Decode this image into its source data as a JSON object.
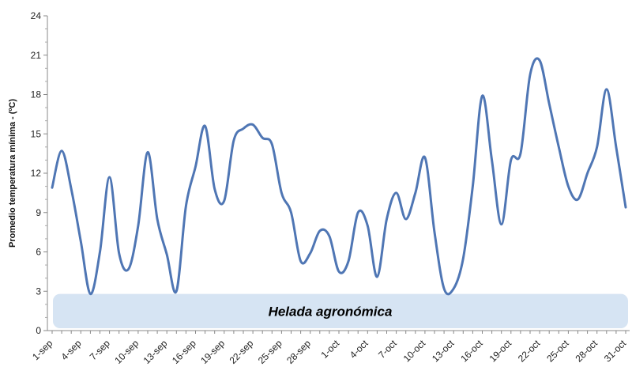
{
  "chart_data": {
    "type": "line",
    "ylabel": "Promedio temperatura mínima - (ºC)",
    "xlabel": "",
    "title": "",
    "ylim": [
      0,
      24
    ],
    "yticks": [
      0,
      3,
      6,
      9,
      12,
      15,
      18,
      21,
      24
    ],
    "x_tick_labels": [
      "1-sep",
      "4-sep",
      "7-sep",
      "10-sep",
      "13-sep",
      "16-sep",
      "19-sep",
      "22-sep",
      "25-sep",
      "28-sep",
      "1-oct",
      "4-oct",
      "7-oct",
      "10-oct",
      "13-oct",
      "16-oct",
      "19-oct",
      "22-oct",
      "25-oct",
      "28-oct",
      "31-oct"
    ],
    "grid": false,
    "legend": "none",
    "series_color": "#4f76b4",
    "band": {
      "label": "Helada agronómica",
      "y_from": 0,
      "y_to": 2.8,
      "color": "#d6e4f3"
    },
    "series": [
      {
        "values": [
          10.9,
          13.7,
          10.8,
          6.8,
          2.8,
          6.0,
          11.7,
          5.9,
          4.7,
          8.0,
          13.6,
          8.5,
          5.8,
          3.0,
          9.5,
          12.5,
          15.6,
          10.8,
          9.9,
          14.5,
          15.4,
          15.7,
          14.7,
          14.2,
          10.5,
          9.0,
          5.3,
          5.9,
          7.6,
          7.2,
          4.5,
          5.3,
          9.0,
          8.0,
          4.1,
          8.5,
          10.5,
          8.5,
          10.5,
          13.2,
          7.5,
          3.2,
          3.2,
          5.5,
          11.0,
          17.9,
          13.0,
          8.1,
          13.0,
          13.5,
          19.5,
          20.6,
          17.3,
          14.0,
          11.0,
          10.0,
          12.0,
          14.0,
          18.4,
          14.0,
          9.4
        ]
      }
    ]
  }
}
